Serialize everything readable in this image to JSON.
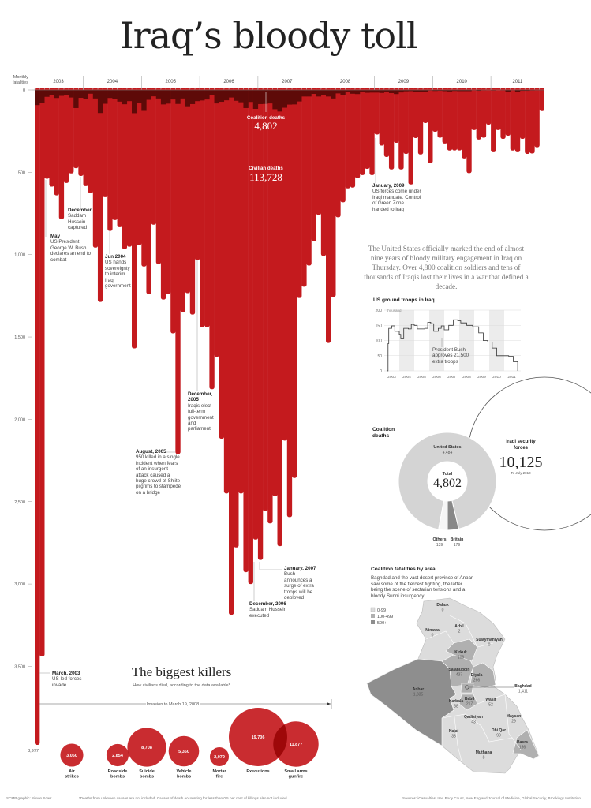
{
  "title": "Iraq’s bloody toll",
  "axis_label": [
    "Monthly",
    "fatalities"
  ],
  "totals": {
    "coalition_label": "Coalition deaths",
    "coalition_value": "4,802",
    "civilian_label": "Civilian deaths",
    "civilian_value": "113,728"
  },
  "annotations": [
    {
      "title": "May",
      "text": "US President George W. Bush declares an end to combat"
    },
    {
      "title": "December",
      "text": "Saddam Hussein captured"
    },
    {
      "title": "Jun 2004",
      "text": "US hands sovereignty to interim Iraqi government"
    },
    {
      "title": "August, 2005",
      "text": "950 killed in a single incident when fears of an insurgent attack caused a huge crowd of Shiite pilgrims to stampede on a bridge"
    },
    {
      "title": "December, 2005",
      "text": "Iraqis elect full-term government and parliament"
    },
    {
      "title": "December, 2006",
      "text": "Saddam Hussein executed"
    },
    {
      "title": "January, 2007",
      "text": "Bush announces a surge of extra troops will be deployed"
    },
    {
      "title": "January, 2009",
      "text": "US forces come under Iraqi mandate. Control of Green Zone handed to Iraq"
    },
    {
      "title": "March, 2003",
      "text": "US-led forces invade"
    }
  ],
  "intro": "The United States officially marked the end of almost nine years of bloody military engagement in Iraq on Thursday. Over 4,800 coalition soldiers and tens of thousands of Iraqis lost their lives in a war that defined a decade.",
  "troops": {
    "title": "US ground troops in Iraq",
    "unit": "thousand",
    "note": "President Bush approves 21,500 extra troops"
  },
  "coalition": {
    "title": "Coalition deaths",
    "us_label": "United States",
    "us_value": "4,484",
    "total_label": "Total",
    "total_value": "4,802",
    "others_label": "Others",
    "others_value": "139",
    "britain_label": "Britain",
    "britain_value": "179",
    "iraqi_label": "Iraqi security forces",
    "iraqi_value": "10,125",
    "iraqi_note": "To July 2010"
  },
  "map": {
    "title": "Coalition fatalities by area",
    "desc": "Baghdad and the vast desert province of Anbar saw some of the fiercest fighting, the latter being the scene of sectarian tensions and a bloody Sunni insurgency",
    "legend": [
      "0-99",
      "100-499",
      "500+"
    ],
    "provinces": [
      {
        "name": "Dahuk",
        "value": "0"
      },
      {
        "name": "Ninawa",
        "value": "0"
      },
      {
        "name": "Arbil",
        "value": "2"
      },
      {
        "name": "Sulaymaniyah",
        "value": "0"
      },
      {
        "name": "Kirkuk",
        "value": "106"
      },
      {
        "name": "Salahuddin",
        "value": "437"
      },
      {
        "name": "Diyala",
        "value": "266"
      },
      {
        "name": "Baghdad",
        "value": "1,411"
      },
      {
        "name": "Anbar",
        "value": "1,335"
      },
      {
        "name": "Karbala",
        "value": "38"
      },
      {
        "name": "Babil",
        "value": "217"
      },
      {
        "name": "Wasit",
        "value": "52"
      },
      {
        "name": "Qadisiyah",
        "value": "43"
      },
      {
        "name": "Maysan",
        "value": "29"
      },
      {
        "name": "Najaf",
        "value": "33"
      },
      {
        "name": "Dhi Qar",
        "value": "99"
      },
      {
        "name": "Basra",
        "value": "156"
      },
      {
        "name": "Muthana",
        "value": "8"
      }
    ]
  },
  "killers": {
    "title": "The biggest killers",
    "subtitle": "How civilians died, according to the data available*",
    "range": "Invasion to March 19, 2008"
  },
  "footer": {
    "credit": "SCMP graphic: Simon Scarr",
    "note": "*Deaths from unknown causes are not included. Causes of death accounting for less than 0.5 per cent of killings also not included.",
    "sources": "Sources: iCasualties, Iraq Body Count, New England Journal of Medicine, Global Security, Brookings Institution"
  },
  "colors": {
    "red": "#c41a1e",
    "dark": "#5e0a08",
    "gray": "#d4d4d4"
  },
  "chart_data": [
    {
      "type": "bar",
      "title": "Monthly fatalities",
      "start": "2003-03",
      "years": [
        "2003",
        "2004",
        "2005",
        "2006",
        "2007",
        "2008",
        "2009",
        "2010",
        "2011"
      ],
      "yticks": [
        "0",
        "500",
        "1,000",
        "1,500",
        "2,000",
        "2,500",
        "3,000",
        "3,500"
      ],
      "ylim": [
        0,
        4000
      ],
      "peak_label": "3,977",
      "series": [
        {
          "name": "Civilian deaths",
          "values": [
            3977,
            3440,
            539,
            587,
            640,
            785,
            565,
            507,
            475,
            522,
            584,
            627,
            957,
            1287,
            651,
            856,
            790,
            833,
            967,
            952,
            1569,
            942,
            1072,
            1239,
            818,
            1057,
            1273,
            1239,
            1478,
            2211,
            1349,
            1234,
            1364,
            1033,
            1440,
            1440,
            1817,
            1620,
            2118,
            2450,
            3187,
            2778,
            2450,
            2928,
            3000,
            2730,
            2854,
            2558,
            2632,
            2467,
            2770,
            2129,
            2594,
            2356,
            1263,
            1195,
            1066,
            918,
            759,
            1008,
            1536,
            1257,
            773,
            682,
            598,
            593,
            536,
            517,
            479,
            517,
            271,
            338,
            407,
            483,
            321,
            483,
            388,
            574,
            292,
            392,
            201,
            445,
            254,
            290,
            325,
            368,
            367,
            367,
            416,
            505,
            244,
            301,
            290,
            211,
            378,
            244,
            297,
            278,
            368,
            378,
            297,
            388,
            386,
            348,
            128
          ]
        },
        {
          "name": "Coalition deaths",
          "values": [
            92,
            80,
            42,
            31,
            49,
            36,
            33,
            46,
            110,
            48,
            53,
            23,
            52,
            140,
            84,
            49,
            57,
            71,
            87,
            68,
            141,
            77,
            127,
            60,
            39,
            52,
            88,
            83,
            58,
            85,
            52,
            99,
            86,
            68,
            64,
            58,
            33,
            82,
            72,
            63,
            46,
            66,
            75,
            110,
            73,
            115,
            86,
            85,
            82,
            117,
            131,
            108,
            89,
            88,
            70,
            40,
            40,
            24,
            40,
            30,
            40,
            52,
            21,
            31,
            14,
            23,
            25,
            14,
            17,
            16,
            16,
            18,
            12,
            19,
            25,
            15,
            8,
            7,
            10,
            14,
            12,
            3,
            6,
            5,
            7,
            9,
            6,
            7,
            7,
            7,
            2,
            5,
            2,
            1,
            3,
            0,
            2,
            11,
            2,
            14,
            5,
            5,
            3,
            2,
            2
          ]
        }
      ]
    },
    {
      "type": "line",
      "title": "US ground troops in Iraq",
      "ylabel": "thousand",
      "ylim": [
        0,
        200
      ],
      "yticks": [
        "0",
        "50",
        "100",
        "150",
        "200"
      ],
      "xticks": [
        "2003",
        "2004",
        "2005",
        "2006",
        "2007",
        "2008",
        "2009",
        "2010",
        "2011"
      ],
      "x": [
        2003.2,
        2003.25,
        2003.3,
        2003.5,
        2003.7,
        2004.0,
        2004.1,
        2004.3,
        2004.6,
        2004.8,
        2005.0,
        2005.2,
        2005.7,
        2005.9,
        2006.1,
        2006.3,
        2006.6,
        2006.8,
        2007.0,
        2007.3,
        2007.6,
        2007.9,
        2008.1,
        2008.5,
        2008.9,
        2009.3,
        2009.6,
        2009.9,
        2010.2,
        2010.5,
        2010.9,
        2011.3,
        2011.6,
        2011.9
      ],
      "y": [
        0,
        90,
        140,
        148,
        130,
        120,
        108,
        140,
        138,
        153,
        150,
        138,
        140,
        160,
        155,
        130,
        140,
        148,
        135,
        150,
        168,
        165,
        158,
        150,
        145,
        125,
        100,
        95,
        75,
        50,
        50,
        48,
        30,
        0
      ]
    },
    {
      "type": "pie",
      "title": "Coalition deaths",
      "categories": [
        "United States",
        "Britain",
        "Others"
      ],
      "values": [
        4484,
        179,
        139
      ],
      "total": 4802
    },
    {
      "type": "scatter",
      "title": "The biggest killers",
      "categories": [
        "Air strikes",
        "Roadside bombs",
        "Suicide bombs",
        "Vehicle bombs",
        "Mortar fire",
        "Executions",
        "Small arms gunfire"
      ],
      "values": [
        3050,
        2854,
        8708,
        5360,
        2079,
        19706,
        11877
      ],
      "labels": [
        "3,050",
        "2,854",
        "8,708",
        "5,360",
        "2,079",
        "19,706",
        "11,877"
      ]
    }
  ]
}
